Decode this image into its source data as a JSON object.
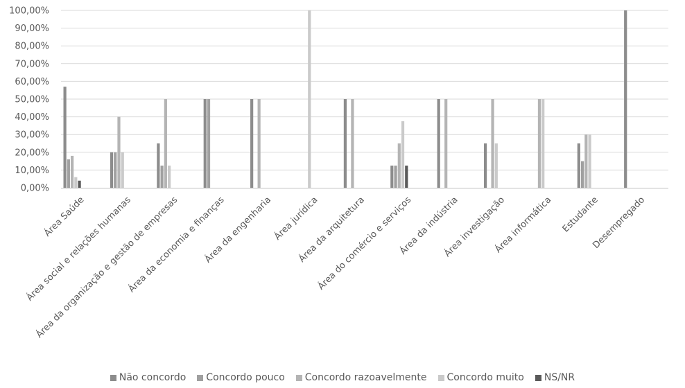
{
  "chart_data": {
    "type": "bar",
    "categories": [
      "Área Saúde",
      "Área social e relações humanas",
      "Área da organização e gestão de empresas",
      "Área da economia e finanças",
      "Área da engenharia",
      "Área jurídica",
      "Área da arquitetura",
      "Área do comércio e serviços",
      "Área da indústria",
      "Área investigação",
      "Área informática",
      "Estudante",
      "Desempregado"
    ],
    "series": [
      {
        "name": "Não concordo",
        "color": "#8c8c8c",
        "values": [
          0.57,
          0.2,
          0.25,
          0.5,
          0.5,
          0.0,
          0.5,
          0.125,
          0.5,
          0.25,
          0.0,
          0.25,
          1.0
        ]
      },
      {
        "name": "Concordo pouco",
        "color": "#a0a0a0",
        "values": [
          0.16,
          0.2,
          0.125,
          0.5,
          0.0,
          0.0,
          0.0,
          0.125,
          0.0,
          0.0,
          0.0,
          0.15,
          0.0
        ]
      },
      {
        "name": "Concordo razoavelmente",
        "color": "#b4b4b4",
        "values": [
          0.18,
          0.4,
          0.5,
          0.0,
          0.5,
          0.0,
          0.5,
          0.25,
          0.5,
          0.5,
          0.5,
          0.3,
          0.0
        ]
      },
      {
        "name": "Concordo muito",
        "color": "#cacaca",
        "values": [
          0.06,
          0.2,
          0.125,
          0.0,
          0.0,
          1.0,
          0.0,
          0.375,
          0.0,
          0.25,
          0.5,
          0.3,
          0.0
        ]
      },
      {
        "name": "NS/NR",
        "color": "#5a5a5a",
        "values": [
          0.04,
          0.0,
          0.0,
          0.0,
          0.0,
          0.0,
          0.0,
          0.125,
          0.0,
          0.0,
          0.0,
          0.0,
          0.0
        ]
      }
    ],
    "y_ticks": [
      "0,00%",
      "10,00%",
      "20,00%",
      "30,00%",
      "40,00%",
      "50,00%",
      "60,00%",
      "70,00%",
      "80,00%",
      "90,00%",
      "100,00%"
    ],
    "ylim": [
      0,
      1
    ],
    "grid": true,
    "legend_position": "bottom",
    "title": "",
    "xlabel": "",
    "ylabel": ""
  }
}
